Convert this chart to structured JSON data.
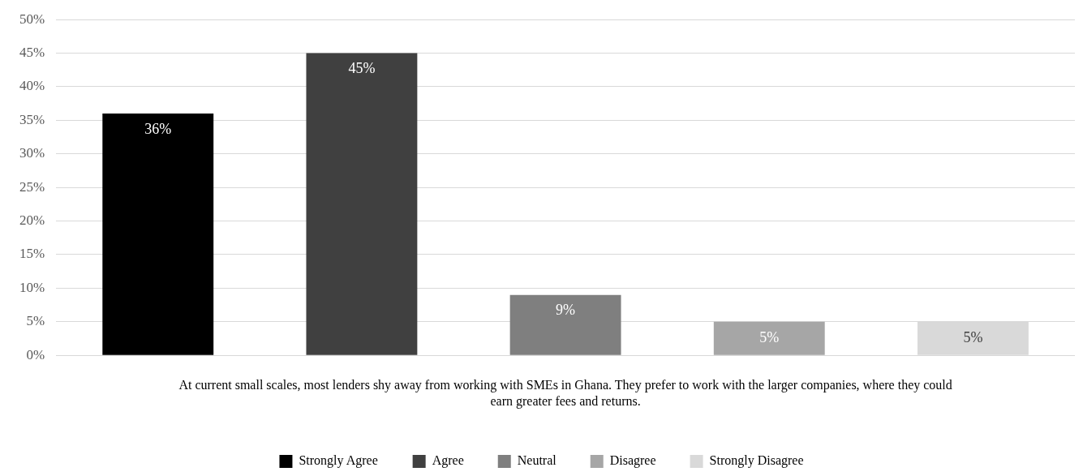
{
  "chart_data": {
    "type": "bar",
    "xlabel": "At current small scales, most lenders shy away from working with SMEs in Ghana. They prefer to work with the larger companies, where they could earn greater fees and returns.",
    "categories": [
      null
    ],
    "series": [
      {
        "name": "Strongly Agree",
        "color": "#000000",
        "values": [
          36
        ],
        "value_labels": [
          "36%"
        ]
      },
      {
        "name": "Agree",
        "color": "#404040",
        "values": [
          45
        ],
        "value_labels": [
          "45%"
        ]
      },
      {
        "name": "Neutral",
        "color": "#7f7f7f",
        "values": [
          9
        ],
        "value_labels": [
          "9%"
        ]
      },
      {
        "name": "Disagree",
        "color": "#a6a6a6",
        "values": [
          5
        ],
        "value_labels": [
          "5%"
        ]
      },
      {
        "name": "Strongly Disagree",
        "color": "#d9d9d9",
        "values": [
          5
        ],
        "value_labels": [
          "5%"
        ]
      }
    ],
    "ylim": [
      0,
      50
    ],
    "yticks": [
      {
        "value": 0,
        "label": "0%"
      },
      {
        "value": 5,
        "label": "5%"
      },
      {
        "value": 10,
        "label": "10%"
      },
      {
        "value": 15,
        "label": "15%"
      },
      {
        "value": 20,
        "label": "20%"
      },
      {
        "value": 25,
        "label": "25%"
      },
      {
        "value": 30,
        "label": "30%"
      },
      {
        "value": 35,
        "label": "35%"
      },
      {
        "value": 40,
        "label": "40%"
      },
      {
        "value": 45,
        "label": "45%"
      },
      {
        "value": 50,
        "label": "50%"
      }
    ],
    "grid": "y",
    "legend": "bottom"
  }
}
